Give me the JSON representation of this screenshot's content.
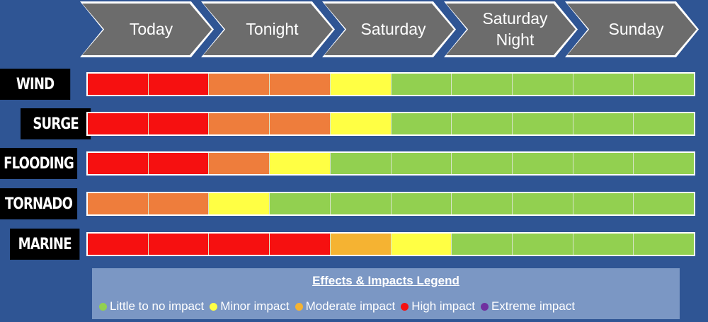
{
  "periods": [
    "Today",
    "Tonight",
    "Saturday",
    "Saturday\nNight",
    "Sunday"
  ],
  "colors": {
    "none": "#92d050",
    "minor": "#ffff44",
    "moderate": "#f5b332",
    "high": "#f61010",
    "orange": "#ee7d3c",
    "extreme": "#7030a0"
  },
  "hazards": [
    {
      "label": "WIND",
      "cells": [
        "high",
        "high",
        "orange",
        "orange",
        "minor",
        "none",
        "none",
        "none",
        "none",
        "none"
      ]
    },
    {
      "label": "SURGE",
      "cells": [
        "high",
        "high",
        "orange",
        "orange",
        "minor",
        "none",
        "none",
        "none",
        "none",
        "none"
      ]
    },
    {
      "label": "FLOODING",
      "cells": [
        "high",
        "high",
        "orange",
        "minor",
        "none",
        "none",
        "none",
        "none",
        "none",
        "none"
      ]
    },
    {
      "label": "TORNADO",
      "cells": [
        "orange",
        "orange",
        "minor",
        "none",
        "none",
        "none",
        "none",
        "none",
        "none",
        "none"
      ]
    },
    {
      "label": "MARINE",
      "cells": [
        "high",
        "high",
        "high",
        "high",
        "moderate",
        "minor",
        "none",
        "none",
        "none",
        "none"
      ]
    }
  ],
  "legend": {
    "title": "Effects & Impacts Legend",
    "items": [
      {
        "label": "Little to no impact",
        "color_key": "none"
      },
      {
        "label": "Minor impact",
        "color_key": "minor"
      },
      {
        "label": "Moderate impact",
        "color_key": "moderate"
      },
      {
        "label": "High impact",
        "color_key": "high"
      },
      {
        "label": "Extreme impact",
        "color_key": "extreme"
      }
    ]
  }
}
